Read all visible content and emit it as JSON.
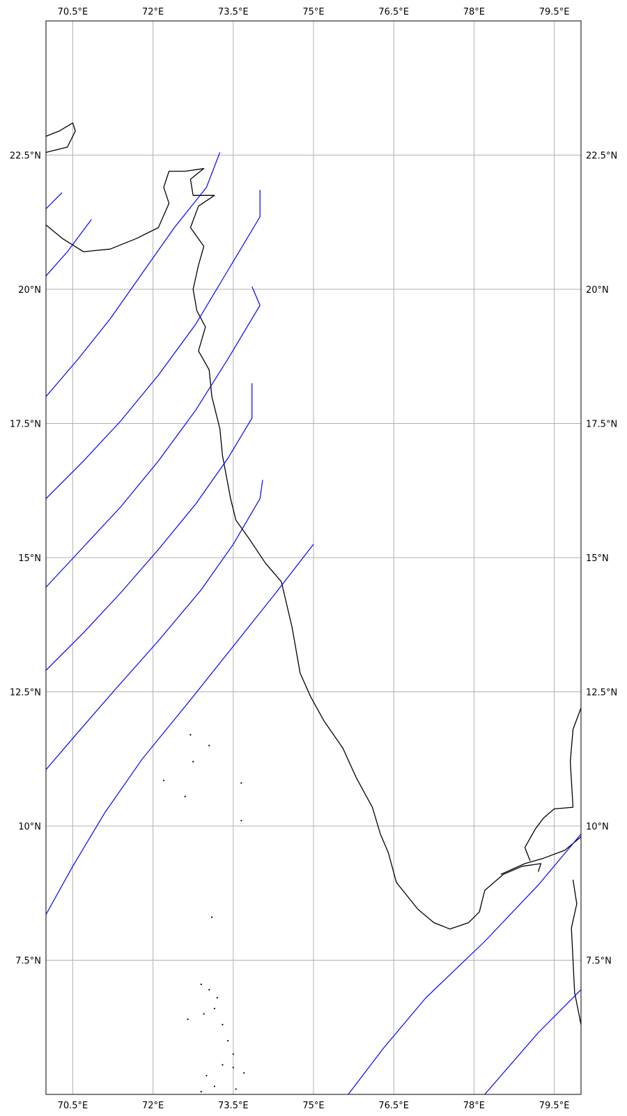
{
  "map": {
    "projection": "PlateCarree",
    "extent": {
      "lon": [
        70.0,
        80.0
      ],
      "lat": [
        5.0,
        25.0
      ]
    },
    "gridlines": {
      "lon": [
        70.5,
        72.0,
        73.5,
        75.0,
        76.5,
        78.0,
        79.5
      ],
      "lat": [
        7.5,
        10.0,
        12.5,
        15.0,
        17.5,
        20.0,
        22.5
      ],
      "lon_labels": [
        "70.5°E",
        "72°E",
        "73.5°E",
        "75°E",
        "76.5°E",
        "78°E",
        "79.5°E"
      ],
      "lat_labels": [
        "7.5°N",
        "10°N",
        "12.5°N",
        "15°N",
        "17.5°N",
        "20°N",
        "22.5°N"
      ],
      "color": "#b0b0b0"
    },
    "coastline_color": "#000000",
    "track_color": "#0000ff",
    "coastline_mainland": [
      [
        70.0,
        22.85
      ],
      [
        70.25,
        22.95
      ],
      [
        70.5,
        23.1
      ],
      [
        70.55,
        22.95
      ],
      [
        70.4,
        22.65
      ],
      [
        70.0,
        22.55
      ]
    ],
    "coastline_saurashtra": [
      [
        70.0,
        21.2
      ],
      [
        70.3,
        20.95
      ],
      [
        70.7,
        20.7
      ],
      [
        71.2,
        20.75
      ],
      [
        71.7,
        20.95
      ],
      [
        72.1,
        21.15
      ],
      [
        72.3,
        21.6
      ],
      [
        72.2,
        21.9
      ],
      [
        72.3,
        22.2
      ],
      [
        72.6,
        22.2
      ],
      [
        72.95,
        22.25
      ],
      [
        72.7,
        22.05
      ],
      [
        72.75,
        21.75
      ],
      [
        73.15,
        21.75
      ],
      [
        72.85,
        21.55
      ],
      [
        72.7,
        21.15
      ],
      [
        72.95,
        20.8
      ],
      [
        72.85,
        20.45
      ],
      [
        72.75,
        20.0
      ],
      [
        72.82,
        19.6
      ],
      [
        72.98,
        19.3
      ],
      [
        72.85,
        18.85
      ],
      [
        73.05,
        18.5
      ],
      [
        73.1,
        18.0
      ],
      [
        73.25,
        17.4
      ],
      [
        73.3,
        16.9
      ],
      [
        73.45,
        16.1
      ],
      [
        73.55,
        15.7
      ],
      [
        73.8,
        15.35
      ],
      [
        74.1,
        14.9
      ],
      [
        74.4,
        14.55
      ],
      [
        74.6,
        13.7
      ],
      [
        74.75,
        12.85
      ],
      [
        74.95,
        12.4
      ],
      [
        75.2,
        11.95
      ],
      [
        75.55,
        11.45
      ],
      [
        75.8,
        10.9
      ],
      [
        76.1,
        10.35
      ],
      [
        76.25,
        9.85
      ],
      [
        76.4,
        9.5
      ],
      [
        76.55,
        8.95
      ],
      [
        76.95,
        8.45
      ],
      [
        77.25,
        8.2
      ],
      [
        77.55,
        8.08
      ],
      [
        77.9,
        8.2
      ],
      [
        78.1,
        8.4
      ],
      [
        78.2,
        8.8
      ],
      [
        78.55,
        9.1
      ],
      [
        78.9,
        9.25
      ],
      [
        79.25,
        9.3
      ],
      [
        79.2,
        9.15
      ]
    ],
    "coastline_east": [
      [
        80.0,
        9.8
      ],
      [
        79.7,
        9.55
      ],
      [
        79.3,
        9.4
      ],
      [
        78.95,
        9.3
      ],
      [
        78.5,
        9.1
      ]
    ],
    "coastline_palk": [
      [
        80.0,
        12.2
      ],
      [
        79.85,
        11.8
      ],
      [
        79.8,
        11.2
      ],
      [
        79.85,
        10.35
      ],
      [
        79.5,
        10.32
      ],
      [
        79.3,
        10.15
      ],
      [
        79.15,
        9.95
      ],
      [
        78.95,
        9.6
      ],
      [
        79.05,
        9.35
      ]
    ],
    "coastline_srilanka": [
      [
        79.85,
        9.0
      ],
      [
        79.92,
        8.55
      ],
      [
        79.82,
        8.1
      ],
      [
        79.85,
        7.5
      ],
      [
        79.88,
        6.9
      ],
      [
        80.0,
        6.3
      ]
    ],
    "islands": [
      [
        72.7,
        11.7
      ],
      [
        73.05,
        11.5
      ],
      [
        72.75,
        11.2
      ],
      [
        72.2,
        10.85
      ],
      [
        72.6,
        10.55
      ],
      [
        73.65,
        10.8
      ],
      [
        73.65,
        10.1
      ],
      [
        73.1,
        8.3
      ],
      [
        72.65,
        6.4
      ],
      [
        72.9,
        7.05
      ],
      [
        73.05,
        6.95
      ],
      [
        73.2,
        6.8
      ],
      [
        73.15,
        6.6
      ],
      [
        72.95,
        6.5
      ],
      [
        73.3,
        6.3
      ],
      [
        73.4,
        6.0
      ],
      [
        73.5,
        5.75
      ],
      [
        73.3,
        5.55
      ],
      [
        73.5,
        5.5
      ],
      [
        73.7,
        5.4
      ],
      [
        73.0,
        5.35
      ],
      [
        73.15,
        5.15
      ],
      [
        72.9,
        5.05
      ],
      [
        73.55,
        5.1
      ]
    ],
    "tracks": [
      [
        [
          70.0,
          21.5
        ],
        [
          70.3,
          21.8
        ]
      ],
      [
        [
          70.0,
          20.25
        ],
        [
          70.4,
          20.7
        ],
        [
          70.85,
          21.3
        ]
      ],
      [
        [
          70.0,
          18.0
        ],
        [
          70.6,
          18.7
        ],
        [
          71.2,
          19.45
        ],
        [
          71.8,
          20.3
        ],
        [
          72.4,
          21.15
        ],
        [
          73.0,
          21.9
        ],
        [
          73.25,
          22.55
        ]
      ],
      [
        [
          70.0,
          16.1
        ],
        [
          70.7,
          16.8
        ],
        [
          71.4,
          17.55
        ],
        [
          72.1,
          18.4
        ],
        [
          72.8,
          19.35
        ],
        [
          73.4,
          20.35
        ],
        [
          74.0,
          21.35
        ],
        [
          74.0,
          21.85
        ]
      ],
      [
        [
          70.0,
          14.45
        ],
        [
          70.7,
          15.2
        ],
        [
          71.4,
          15.95
        ],
        [
          72.1,
          16.8
        ],
        [
          72.8,
          17.75
        ],
        [
          73.4,
          18.7
        ],
        [
          74.0,
          19.7
        ],
        [
          73.85,
          20.05
        ]
      ],
      [
        [
          70.0,
          12.9
        ],
        [
          70.7,
          13.6
        ],
        [
          71.4,
          14.35
        ],
        [
          72.1,
          15.15
        ],
        [
          72.8,
          16.0
        ],
        [
          73.4,
          16.85
        ],
        [
          73.85,
          17.6
        ],
        [
          73.85,
          18.25
        ]
      ],
      [
        [
          70.0,
          11.05
        ],
        [
          70.6,
          11.75
        ],
        [
          71.3,
          12.55
        ],
        [
          72.1,
          13.45
        ],
        [
          72.9,
          14.4
        ],
        [
          73.5,
          15.25
        ],
        [
          74.0,
          16.1
        ],
        [
          74.05,
          16.45
        ]
      ],
      [
        [
          70.0,
          8.35
        ],
        [
          70.5,
          9.25
        ],
        [
          71.1,
          10.25
        ],
        [
          71.8,
          11.25
        ],
        [
          72.7,
          12.35
        ],
        [
          73.5,
          13.35
        ],
        [
          74.3,
          14.35
        ],
        [
          75.0,
          15.25
        ]
      ],
      [
        [
          75.65,
          5.0
        ],
        [
          76.3,
          5.85
        ],
        [
          77.1,
          6.8
        ],
        [
          78.2,
          7.85
        ],
        [
          79.2,
          8.9
        ],
        [
          80.0,
          9.85
        ]
      ],
      [
        [
          78.2,
          5.0
        ],
        [
          79.2,
          6.15
        ],
        [
          80.0,
          6.95
        ]
      ]
    ]
  }
}
